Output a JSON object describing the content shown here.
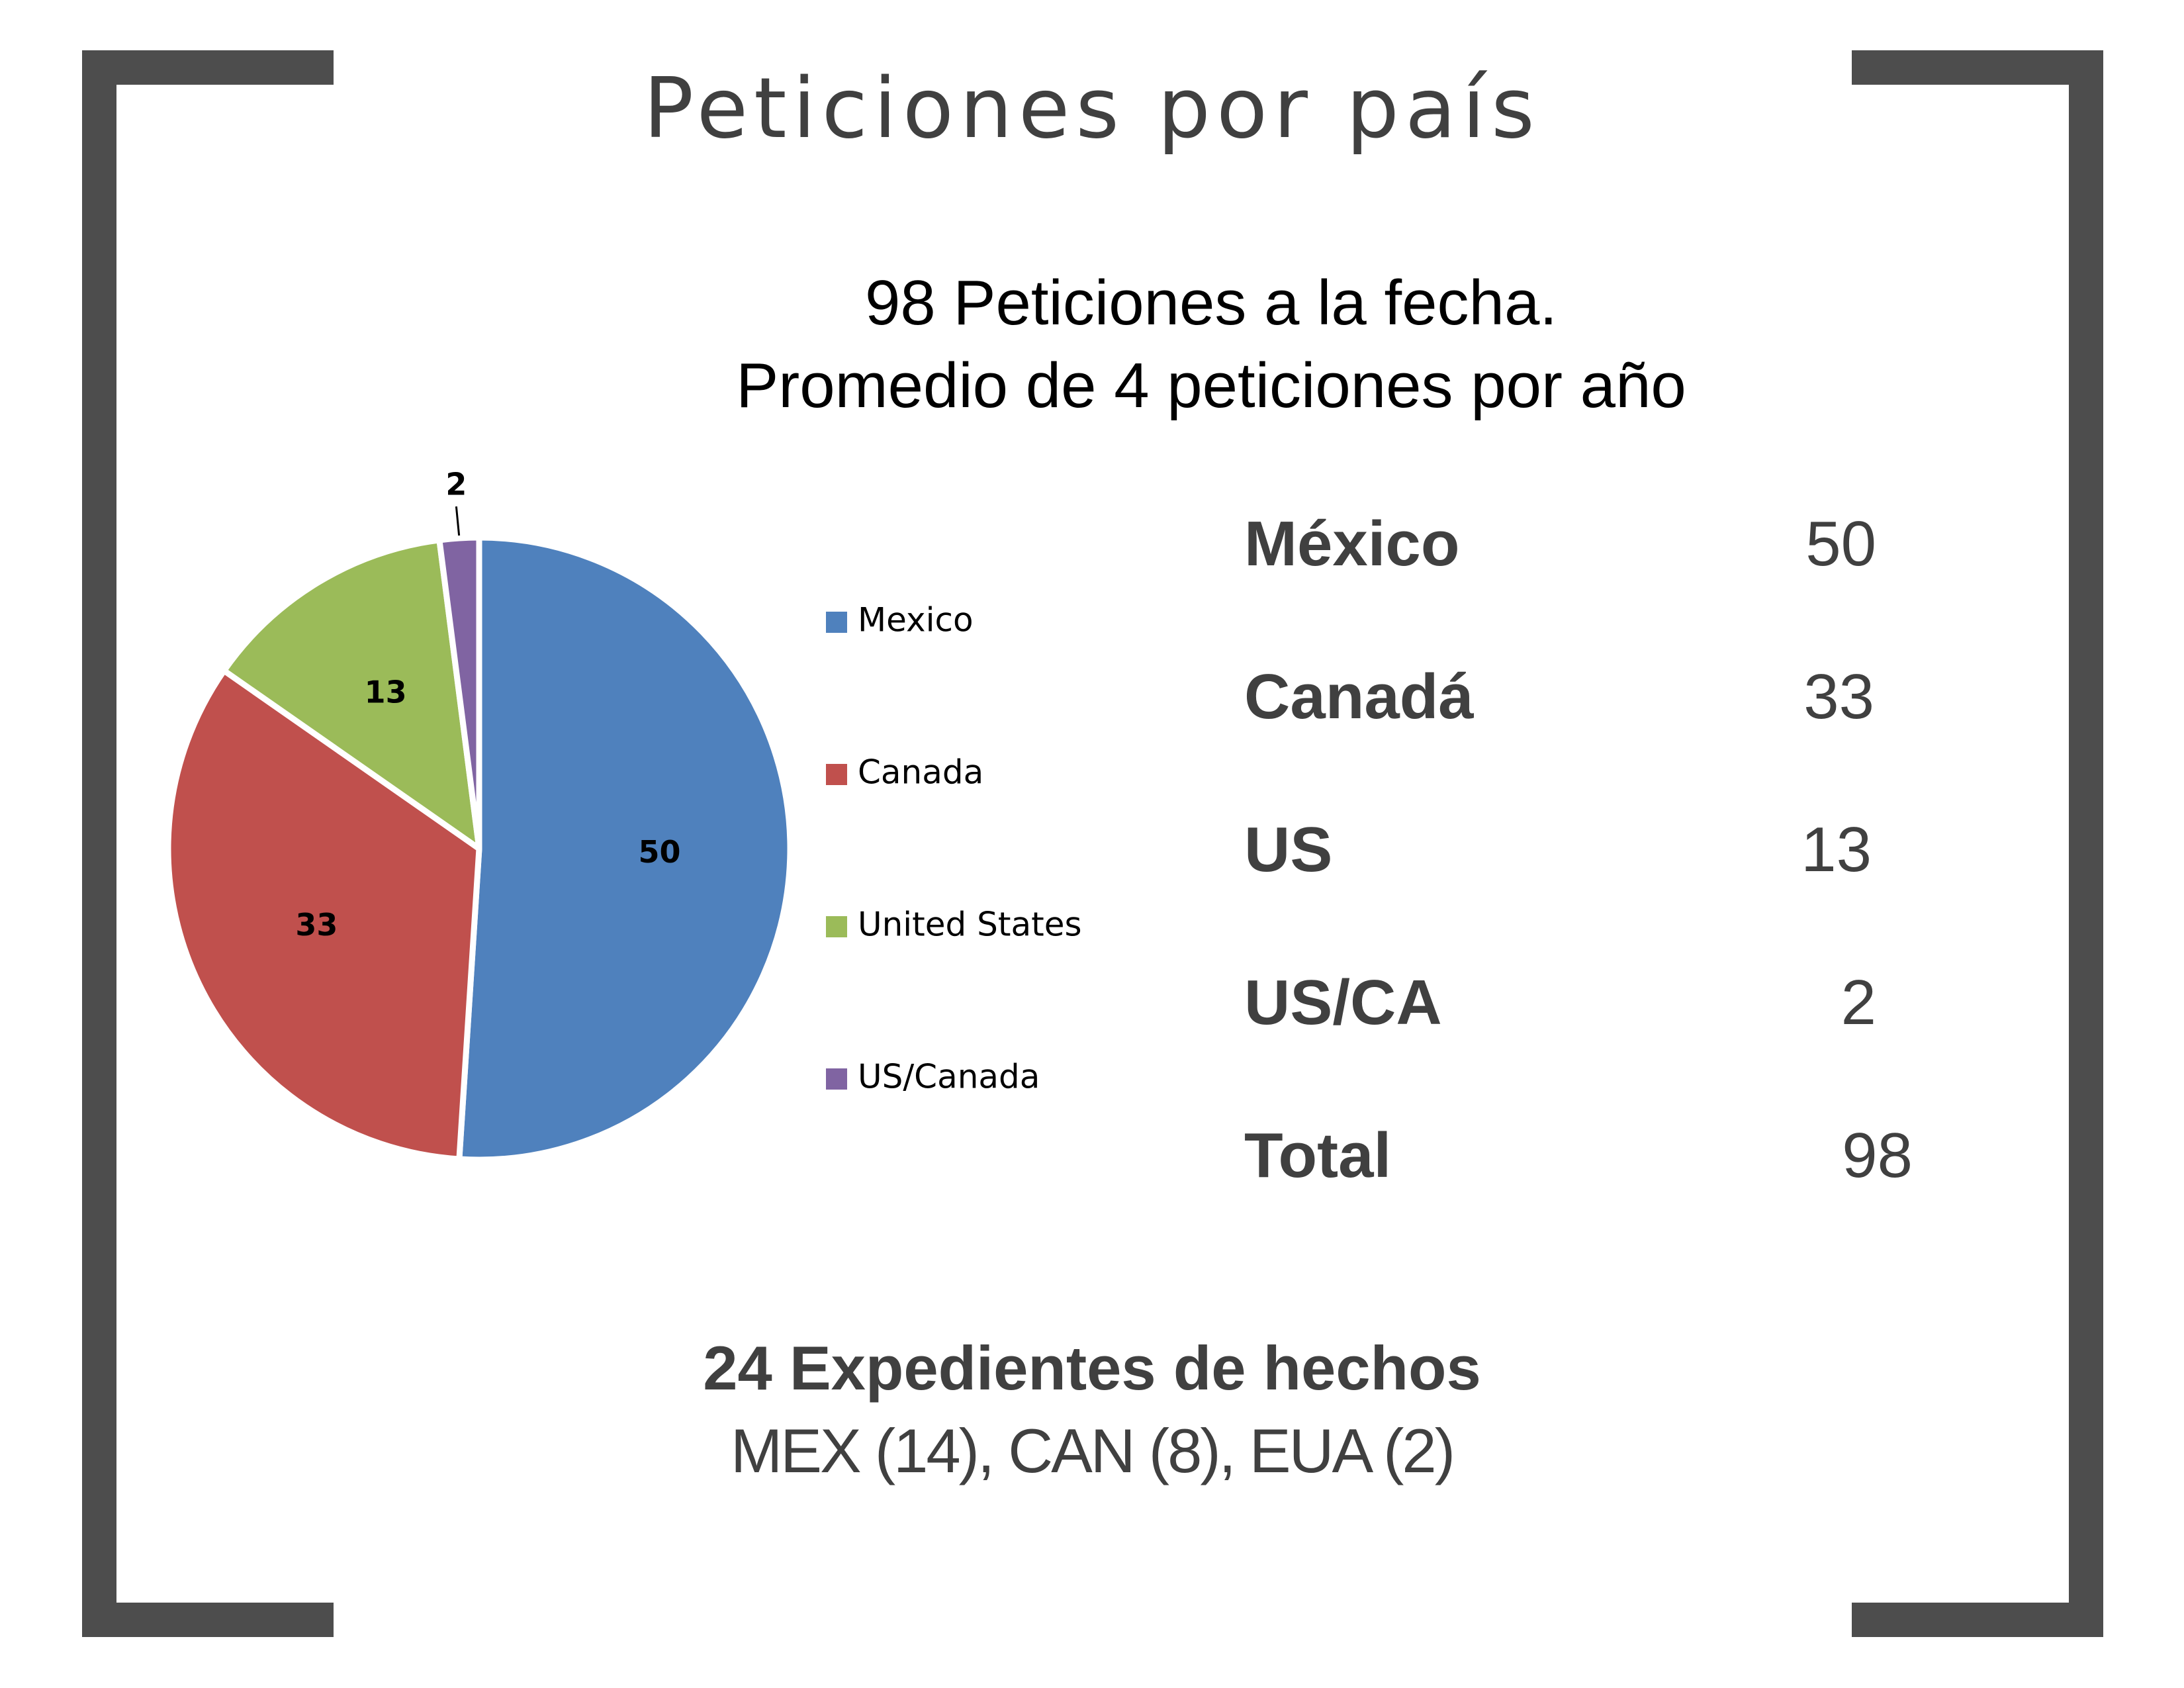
{
  "title": "Peticiones por país",
  "subtitle": {
    "line1": "98 Peticiones a la fecha.",
    "line2": "Promedio de 4 peticiones por año"
  },
  "chart_data": {
    "type": "pie",
    "title": "",
    "categories": [
      "Mexico",
      "Canada",
      "United States",
      "US/Canada"
    ],
    "values": [
      50,
      33,
      13,
      2
    ],
    "colors": [
      "#4f81bd",
      "#c0504d",
      "#9bbb59",
      "#8064a2"
    ],
    "data_labels": [
      "50",
      "33",
      "13",
      "2"
    ],
    "legend": "right",
    "start_angle": "12 o'clock",
    "direction": "clockwise"
  },
  "summary_table": [
    {
      "name": "México",
      "value": "50"
    },
    {
      "name": "Canadá",
      "value": "33"
    },
    {
      "name": "US",
      "value": "13"
    },
    {
      "name": "US/CA",
      "value": "2"
    },
    {
      "name": "Total",
      "value": "98"
    }
  ],
  "footer": {
    "heading": "24 Expedientes de hechos",
    "detail": "MEX (14), CAN (8), EUA (2)"
  }
}
